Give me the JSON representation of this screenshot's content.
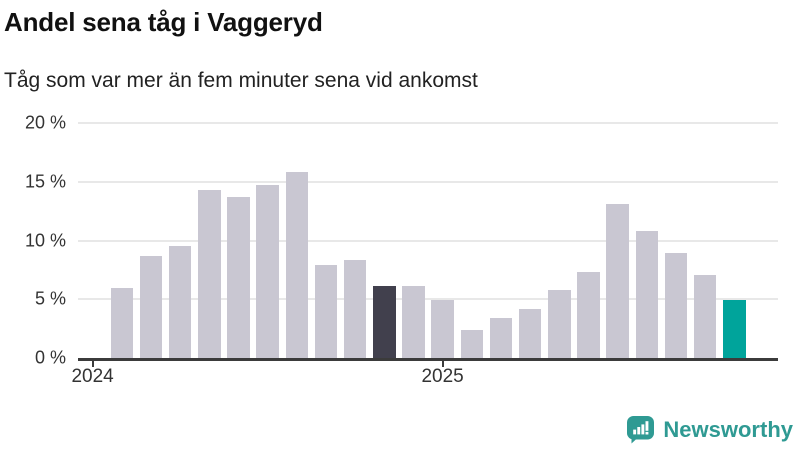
{
  "header": {
    "title": "Andel sena tåg i Vaggeryd",
    "subtitle": "Tåg som var mer än fem minuter sena vid ankomst"
  },
  "branding": {
    "name": "Newsworthy",
    "color": "#2f9a93"
  },
  "colors": {
    "bar_default": "#c9c7d2",
    "bar_highlight_dark": "#41404d",
    "bar_highlight_teal": "#00a49b",
    "gridline": "#e8e8e8",
    "axis": "#3b3b3b",
    "tick_text": "#333333"
  },
  "chart_data": {
    "type": "bar",
    "unit": "%",
    "title": "Andel sena tåg i Vaggeryd",
    "subtitle": "Tåg som var mer än fem minuter sena vid ankomst",
    "categories": [
      "2024-02",
      "2024-03",
      "2024-04",
      "2024-05",
      "2024-06",
      "2024-07",
      "2024-08",
      "2024-09",
      "2024-10",
      "2024-11",
      "2024-12",
      "2025-01",
      "2025-02",
      "2025-03",
      "2025-04",
      "2025-05",
      "2025-06",
      "2025-07",
      "2025-08",
      "2025-09",
      "2025-10",
      "2025-11"
    ],
    "values": [
      6.0,
      8.7,
      9.5,
      14.3,
      13.7,
      14.7,
      15.8,
      7.9,
      8.3,
      6.1,
      6.1,
      4.9,
      2.4,
      3.4,
      4.2,
      5.8,
      7.3,
      13.1,
      10.8,
      8.9,
      7.1,
      4.9
    ],
    "highlights": {
      "2024-11": "dark",
      "2025-11": "teal"
    },
    "ylim": [
      0,
      20
    ],
    "yticks": [
      {
        "value": 0,
        "label": "0 %"
      },
      {
        "value": 5,
        "label": "5 %"
      },
      {
        "value": 10,
        "label": "10 %"
      },
      {
        "value": 15,
        "label": "15 %"
      },
      {
        "value": 20,
        "label": "20 %"
      }
    ],
    "xticks": [
      {
        "label": "2024",
        "month_index": 0
      },
      {
        "label": "2025",
        "month_index": 12
      }
    ],
    "x_axis_span_months": 24,
    "grid": "horizontal",
    "legend": "none"
  }
}
